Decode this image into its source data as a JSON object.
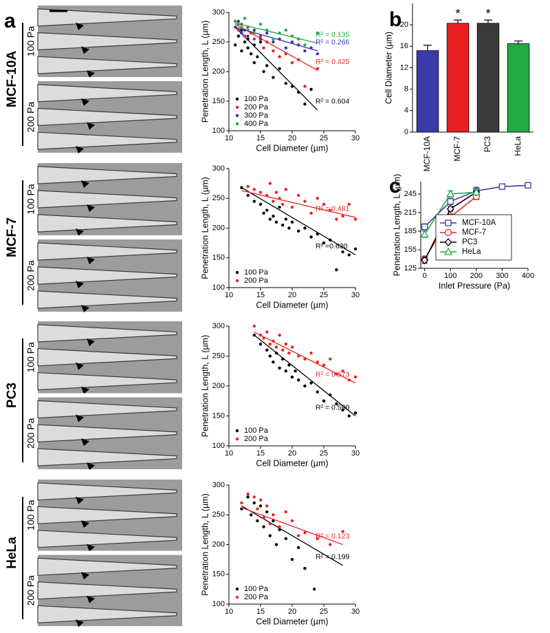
{
  "panel_labels": [
    "a",
    "b",
    "c"
  ],
  "micrographs": [
    {
      "cell_line": "MCF-10A",
      "pressures": [
        "100 Pa",
        "200 Pa"
      ]
    },
    {
      "cell_line": "MCF-7",
      "pressures": [
        "100 Pa",
        "200 Pa"
      ]
    },
    {
      "cell_line": "PC3",
      "pressures": [
        "100 Pa",
        "200 Pa"
      ]
    },
    {
      "cell_line": "HeLa",
      "pressures": [
        "100 Pa",
        "200 Pa"
      ]
    }
  ],
  "chart_data": [
    {
      "type": "scatter",
      "xlabel": "Cell Diameter (µm)",
      "ylabel": "Penetration Length, L (µm)",
      "xlim": [
        10,
        30
      ],
      "xticks": [
        10,
        15,
        20,
        25,
        30
      ],
      "ylim": [
        100,
        300
      ],
      "yticks": [
        100,
        150,
        200,
        250,
        300
      ],
      "legend": "lower left",
      "series": [
        {
          "name": "100 Pa",
          "color": "#000000",
          "x": [
            11,
            11.5,
            12,
            12,
            12.5,
            13,
            13,
            13.5,
            14,
            14,
            14.5,
            15,
            15.5,
            16,
            17,
            18,
            19,
            20,
            21,
            22,
            23
          ],
          "values": [
            245,
            260,
            270,
            235,
            250,
            255,
            240,
            230,
            245,
            215,
            225,
            250,
            200,
            210,
            190,
            205,
            180,
            175,
            165,
            145,
            170
          ],
          "fit": {
            "x": [
              11,
              24
            ],
            "values": [
              275,
              135
            ]
          },
          "r2": "R² = 0.604"
        },
        {
          "name": "200 Pa",
          "color": "#ee2222",
          "x": [
            11,
            11.5,
            12,
            12.5,
            13,
            13.5,
            14,
            15,
            15.5,
            16,
            17,
            18,
            19,
            20,
            21,
            22,
            24
          ],
          "values": [
            285,
            270,
            280,
            260,
            275,
            265,
            255,
            260,
            240,
            250,
            235,
            225,
            230,
            215,
            220,
            175,
            205
          ],
          "fit": {
            "x": [
              11,
              24
            ],
            "values": [
              280,
              202
            ]
          },
          "r2": "R² = 0.425"
        },
        {
          "name": "300 Pa",
          "color": "#3333bb",
          "x": [
            11,
            11.5,
            12,
            12.5,
            13,
            14,
            15,
            16,
            17,
            18,
            19,
            20,
            21,
            22,
            23,
            24
          ],
          "values": [
            275,
            285,
            265,
            270,
            260,
            270,
            255,
            265,
            250,
            255,
            240,
            250,
            245,
            235,
            240,
            230
          ],
          "fit": {
            "x": [
              11,
              24
            ],
            "values": [
              275,
              235
            ]
          },
          "r2": "R² = 0.266"
        },
        {
          "name": "400 Pa",
          "color": "#22aa44",
          "x": [
            11,
            11.5,
            12,
            12.5,
            13,
            14,
            15,
            16,
            17,
            18,
            19,
            20,
            21,
            22,
            24
          ],
          "values": [
            285,
            280,
            275,
            290,
            270,
            265,
            280,
            270,
            255,
            265,
            270,
            260,
            255,
            245,
            265
          ],
          "fit": {
            "x": [
              11,
              24
            ],
            "values": [
              282,
              248
            ]
          },
          "r2": "R² = 0.135"
        }
      ]
    },
    {
      "type": "scatter",
      "xlabel": "Cell Diameter (µm)",
      "ylabel": "Penetration Length, L (µm)",
      "xlim": [
        10,
        30
      ],
      "xticks": [
        10,
        15,
        20,
        25,
        30
      ],
      "ylim": [
        100,
        300
      ],
      "yticks": [
        100,
        150,
        200,
        250,
        300
      ],
      "legend": "lower left",
      "series": [
        {
          "name": "100 Pa",
          "color": "#000000",
          "x": [
            12,
            13,
            14,
            15,
            15.5,
            16,
            16.5,
            17,
            17.5,
            18,
            18.5,
            19,
            19.5,
            20,
            21,
            22,
            23,
            24,
            25,
            26,
            27,
            28,
            29,
            30
          ],
          "values": [
            268,
            255,
            245,
            240,
            225,
            230,
            215,
            220,
            210,
            235,
            205,
            215,
            200,
            210,
            195,
            200,
            185,
            190,
            175,
            180,
            130,
            160,
            155,
            165
          ],
          "fit": {
            "x": [
              12,
              30
            ],
            "values": [
              268,
              155
            ]
          },
          "r2": "R² =0.630"
        },
        {
          "name": "200 Pa",
          "color": "#ee2222",
          "x": [
            13,
            14,
            15,
            16,
            16.5,
            17,
            17.5,
            18,
            18.5,
            19,
            20,
            21,
            22,
            23,
            24,
            25,
            26,
            27,
            28,
            29,
            30
          ],
          "values": [
            270,
            265,
            260,
            255,
            275,
            245,
            260,
            250,
            240,
            265,
            235,
            255,
            245,
            225,
            250,
            240,
            230,
            215,
            220,
            240,
            215
          ],
          "fit": {
            "x": [
              12,
              30
            ],
            "values": [
              263,
              218
            ]
          },
          "r2": "R² = 0.481"
        }
      ]
    },
    {
      "type": "scatter",
      "xlabel": "Cell Diameter (µm)",
      "ylabel": "Penetration Length, L (µm)",
      "xlim": [
        10,
        30
      ],
      "xticks": [
        10,
        15,
        20,
        25,
        30
      ],
      "ylim": [
        100,
        300
      ],
      "yticks": [
        100,
        150,
        200,
        250,
        300
      ],
      "legend": "lower left",
      "series": [
        {
          "name": "100 Pa",
          "color": "#000000",
          "x": [
            14,
            15,
            16,
            16.5,
            17,
            17.5,
            18,
            18.5,
            19,
            19.5,
            20,
            20.5,
            21,
            22,
            23,
            24,
            25,
            26,
            27,
            28,
            29,
            30
          ],
          "values": [
            285,
            270,
            260,
            250,
            240,
            255,
            230,
            245,
            225,
            235,
            215,
            225,
            210,
            200,
            205,
            190,
            175,
            185,
            170,
            160,
            150,
            155
          ],
          "fit": {
            "x": [
              14,
              30
            ],
            "values": [
              285,
              150
            ]
          },
          "r2": "R² = 0.590"
        },
        {
          "name": "200 Pa",
          "color": "#ee2222",
          "x": [
            14,
            15,
            15.5,
            16,
            16.5,
            17,
            17.5,
            18,
            18.5,
            19,
            19.5,
            20,
            21,
            22,
            23,
            24,
            25,
            26,
            27,
            28,
            29,
            30
          ],
          "values": [
            300,
            285,
            280,
            290,
            270,
            275,
            265,
            285,
            260,
            270,
            255,
            265,
            250,
            245,
            255,
            240,
            235,
            245,
            220,
            225,
            210,
            215
          ],
          "fit": {
            "x": [
              14,
              30
            ],
            "values": [
              290,
              205
            ]
          },
          "r2": "R² = 0.573"
        }
      ]
    },
    {
      "type": "scatter",
      "xlabel": "Cell Diameter (µm)",
      "ylabel": "Penetration Length, L (µm)",
      "xlim": [
        10,
        30
      ],
      "xticks": [
        10,
        15,
        20,
        25,
        30
      ],
      "ylim": [
        100,
        300
      ],
      "yticks": [
        100,
        150,
        200,
        250,
        300
      ],
      "legend": "lower left",
      "series": [
        {
          "name": "100 Pa",
          "color": "#000000",
          "x": [
            12,
            13,
            13.5,
            14,
            14.5,
            15,
            15.5,
            16,
            16.5,
            17,
            17.5,
            18,
            19,
            20,
            21,
            22,
            23.5
          ],
          "values": [
            260,
            280,
            250,
            270,
            240,
            265,
            230,
            255,
            215,
            240,
            200,
            225,
            210,
            175,
            195,
            160,
            125
          ],
          "fit": {
            "x": [
              12,
              28
            ],
            "values": [
              265,
              165
            ]
          },
          "r2": "R² = 0.199"
        },
        {
          "name": "200 Pa",
          "color": "#ee2222",
          "x": [
            12,
            13,
            14,
            14.5,
            15,
            15.5,
            16,
            16.5,
            17,
            18,
            19,
            20,
            21,
            22,
            24,
            26,
            28
          ],
          "values": [
            270,
            285,
            280,
            260,
            275,
            245,
            265,
            235,
            250,
            230,
            255,
            240,
            215,
            220,
            210,
            200,
            222
          ],
          "fit": {
            "x": [
              12,
              28
            ],
            "values": [
              262,
              200
            ]
          },
          "r2": "R² = 0.123"
        }
      ]
    },
    {
      "type": "bar",
      "ylabel": "Cell Diameter (µm)",
      "categories": [
        "MCF-10A",
        "MCF-7",
        "PC3",
        "HeLa"
      ],
      "values": [
        15.2,
        20.3,
        20.3,
        16.5
      ],
      "errors": [
        1.0,
        0.6,
        0.6,
        0.5
      ],
      "colors": [
        "#3a3aa8",
        "#e82020",
        "#3a3a3a",
        "#22aa44"
      ],
      "significant": [
        false,
        true,
        true,
        false
      ],
      "significance_label": "*",
      "ylim": [
        0,
        24
      ],
      "yticks": [
        0,
        4,
        8,
        12,
        16,
        20
      ]
    },
    {
      "type": "line",
      "xlabel": "Inlet Pressure (Pa)",
      "ylabel": "Penetration Length, L (µm)",
      "x": [
        0,
        100,
        200,
        300,
        400
      ],
      "xlim": [
        -15,
        400
      ],
      "xticks": [
        0,
        100,
        200,
        300,
        400
      ],
      "ylim": [
        125,
        265
      ],
      "yticks": [
        125,
        155,
        185,
        215,
        245
      ],
      "legend": "center right",
      "series": [
        {
          "name": "MCF-10A",
          "color": "#3a3aa8",
          "marker": "square",
          "values": [
            192,
            233,
            250,
            257,
            259
          ],
          "errors": [
            5,
            5,
            6,
            4,
            4
          ]
        },
        {
          "name": "MCF-7",
          "color": "#e82020",
          "marker": "circle",
          "values": [
            140,
            208,
            241,
            null,
            null
          ],
          "errors": [
            5,
            5,
            5,
            null,
            null
          ]
        },
        {
          "name": "PC3",
          "color": "#000000",
          "marker": "diamond",
          "values": [
            138,
            221,
            248,
            null,
            null
          ],
          "errors": [
            5,
            4,
            4,
            null,
            null
          ]
        },
        {
          "name": "HeLa",
          "color": "#22aa44",
          "marker": "triangle",
          "values": [
            180,
            245,
            248,
            null,
            null
          ],
          "errors": [
            5,
            5,
            4,
            null,
            null
          ]
        }
      ]
    }
  ]
}
